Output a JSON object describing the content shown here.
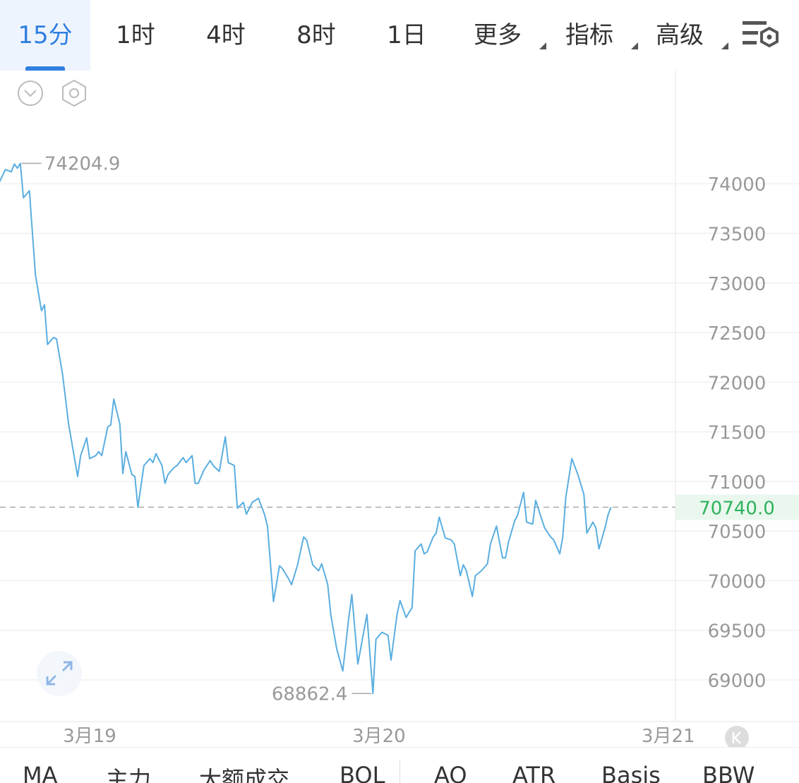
{
  "tabs": [
    "15分",
    "1时",
    "4时",
    "8时",
    "1日",
    "更多",
    "指标",
    "高级"
  ],
  "indicators": [
    "MA",
    "主力",
    "大额成交",
    "BOL",
    "AO",
    "ATR",
    "Basis",
    "BBW"
  ],
  "chart_data": {
    "type": "line",
    "color": "#5aaee0",
    "x": [
      -7.5,
      -7,
      -6.5,
      -6.25,
      -6,
      -5.75,
      -5.5,
      -5,
      -4.5,
      -4,
      -3.75,
      -3.5,
      -3,
      -2.75,
      -2.25,
      -1.75,
      -1,
      -0.75,
      -0.25,
      0,
      0.5,
      0.75,
      1,
      1.5,
      1.75,
      2,
      2.5,
      2.75,
      3,
      3.5,
      3.75,
      4,
      4.5,
      5,
      5.25,
      5.5,
      6,
      6.25,
      6.5,
      7,
      7.25,
      7.75,
      8,
      8.5,
      8.75,
      9,
      9.5,
      10,
      10.25,
      10.75,
      11.25,
      11.5,
      12,
      12.25,
      12.75,
      13,
      13.5,
      14,
      14.5,
      14.75,
      15.25,
      15.75,
      16,
      16.5,
      16.75,
      17.25,
      17.75,
      18,
      18.5,
      19,
      19.25,
      19.75,
      20,
      20.5,
      21,
      21.5,
      21.75,
      22.25,
      23,
      23.5,
      23.75,
      24.25,
      24.75,
      25,
      25.5,
      25.75,
      26.25,
      26.75,
      27,
      27.5,
      27.75,
      28,
      28.5,
      28.75,
      29,
      29.5,
      30,
      30.25,
      30.75,
      31,
      31.25,
      31.75,
      32,
      32.5,
      33,
      33.25,
      33.75,
      34.25,
      34.5,
      34.75,
      35.25,
      35.5,
      36,
      36.25,
      36.75,
      37,
      37.5,
      37.75,
      38.25,
      38.5,
      39,
      39.25,
      39.5,
      40,
      40.5,
      41,
      41.25,
      41.75,
      42,
      42.25,
      42.75,
      43,
      43.25
    ],
    "values": [
      74014,
      74142,
      74121,
      74199,
      74156,
      74204.9,
      73858,
      73929,
      73080,
      72720,
      72780,
      72380,
      72450,
      72435,
      72080,
      71580,
      71050,
      71260,
      71440,
      71230,
      71260,
      71300,
      71260,
      71550,
      71570,
      71830,
      71580,
      71080,
      71300,
      71070,
      71050,
      70740,
      71160,
      71230,
      71190,
      71280,
      71160,
      70980,
      71070,
      71140,
      71160,
      71240,
      71190,
      71260,
      70980,
      70980,
      71120,
      71210,
      71160,
      71100,
      71450,
      71190,
      71160,
      70730,
      70790,
      70670,
      70790,
      70830,
      70670,
      70550,
      69790,
      70150,
      70120,
      70020,
      69960,
      70160,
      70440,
      70410,
      70160,
      70100,
      70170,
      69960,
      69660,
      69310,
      69090,
      69630,
      69860,
      69160,
      69660,
      68862.4,
      69410,
      69480,
      69450,
      69200,
      69660,
      69800,
      69630,
      69730,
      70300,
      70370,
      70270,
      70290,
      70440,
      70480,
      70640,
      70430,
      70410,
      70370,
      70050,
      70160,
      70100,
      69840,
      70050,
      70100,
      70170,
      70370,
      70550,
      70230,
      70230,
      70390,
      70600,
      70660,
      70890,
      70590,
      70570,
      70810,
      70620,
      70530,
      70440,
      70410,
      70270,
      70440,
      70840,
      71230,
      71070,
      70870,
      70480,
      70590,
      70530,
      70320,
      70530,
      70660,
      70740
    ],
    "xlim": [
      -7.44,
      48.6
    ],
    "xticks": [
      {
        "value": 0,
        "label": "3月19"
      },
      {
        "value": 24,
        "label": "3月20"
      },
      {
        "value": 48,
        "label": "3月21"
      }
    ],
    "ylim": [
      68580,
      75140
    ],
    "yticks": [
      69000,
      69500,
      70000,
      70500,
      71000,
      71500,
      72000,
      72500,
      73000,
      73500,
      74000
    ],
    "grid": true,
    "max_label": 74204.9,
    "min_label": 68862.4,
    "last_price": {
      "value": 70740,
      "label": "70740.0"
    }
  }
}
